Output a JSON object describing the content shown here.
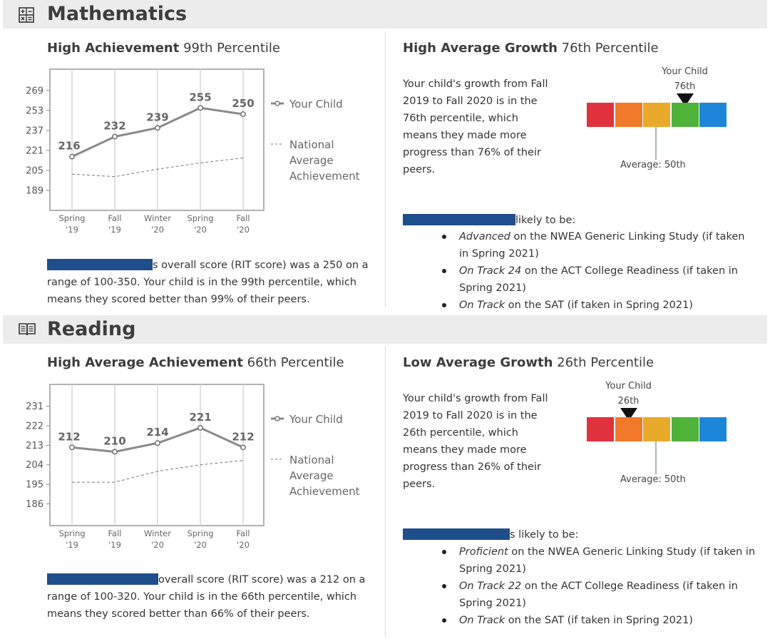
{
  "sections": [
    {
      "id": "math",
      "title": "Mathematics",
      "icon": "calculator-icon",
      "achievement": {
        "label": "High Achievement",
        "percentile": "99th Percentile",
        "legend_child": "Your Child",
        "legend_national": [
          "National",
          "Average",
          "Achievement"
        ],
        "summary_lead": "s overall score (RIT score) was a 250 on a",
        "summary_rest": "range of 100-350. Your child is in the 99th percentile, which means they scored better than 99% of their peers."
      },
      "growth": {
        "label": "High Average Growth",
        "percentile": "76th Percentile",
        "text": "Your child's growth from Fall 2019 to Fall 2020 is in the 76th percentile, which means they made more progress than 76% of their peers.",
        "marker_label": "Your Child",
        "marker_value": "76th",
        "marker_percentile": 76,
        "average_label": "Average: 50th",
        "likely_text": "likely to be:",
        "bullets": [
          {
            "em": "Advanced",
            "rest": " on the NWEA Generic Linking Study (if taken in Spring 2021)"
          },
          {
            "em": "On Track 24",
            "rest": " on the ACT College Readiness (if taken in Spring 2021)"
          },
          {
            "em": "On Track",
            "rest": " on the SAT (if taken in Spring 2021)"
          }
        ]
      }
    },
    {
      "id": "reading",
      "title": "Reading",
      "icon": "book-icon",
      "achievement": {
        "label": "High Average Achievement",
        "percentile": "66th Percentile",
        "legend_child": "Your Child",
        "legend_national": [
          "National",
          "Average",
          "Achievement"
        ],
        "summary_lead": "overall score (RIT score) was a 212 on a",
        "summary_rest": "range of 100-320. Your child is in the 66th percentile, which means they scored better than 66% of their peers."
      },
      "growth": {
        "label": "Low Average Growth",
        "percentile": "26th Percentile",
        "text": "Your child's growth from Fall 2019 to Fall 2020 is in the 26th percentile, which means they made more progress than 26% of their peers.",
        "marker_label": "Your Child",
        "marker_value": "26th",
        "marker_percentile": 26,
        "average_label": "Average: 50th",
        "likely_text": "s likely to be:",
        "bullets": [
          {
            "em": "Proficient",
            "rest": " on the NWEA Generic Linking Study (if taken in Spring 2021)"
          },
          {
            "em": "On Track 22",
            "rest": " on the ACT College Readiness (if taken in Spring 2021)"
          },
          {
            "em": "On Track",
            "rest": " on the SAT (if taken in Spring 2021)"
          }
        ]
      }
    }
  ],
  "gauge_colors": [
    "#e0323c",
    "#f07a2a",
    "#e9a92a",
    "#4fb33a",
    "#1d86d8"
  ],
  "chart_data": [
    {
      "type": "line",
      "categories": [
        "Spring '19",
        "Fall '19",
        "Winter '20",
        "Spring '20",
        "Fall '20"
      ],
      "series": [
        {
          "name": "Your Child",
          "values": [
            216,
            232,
            239,
            255,
            250
          ]
        },
        {
          "name": "National Average Achievement",
          "values": [
            202,
            200,
            206,
            211,
            215
          ]
        }
      ],
      "yticks": [
        269,
        253,
        237,
        221,
        205,
        189
      ],
      "ylim": [
        173,
        286
      ]
    },
    {
      "type": "line",
      "categories": [
        "Spring '19",
        "Fall '19",
        "Winter '20",
        "Spring '20",
        "Fall '20"
      ],
      "series": [
        {
          "name": "Your Child",
          "values": [
            212,
            210,
            214,
            221,
            212
          ]
        },
        {
          "name": "National Average Achievement",
          "values": [
            196,
            196,
            201,
            204,
            206
          ]
        }
      ],
      "yticks": [
        231,
        222,
        213,
        204,
        195,
        186
      ],
      "ylim": [
        176,
        241
      ]
    }
  ]
}
